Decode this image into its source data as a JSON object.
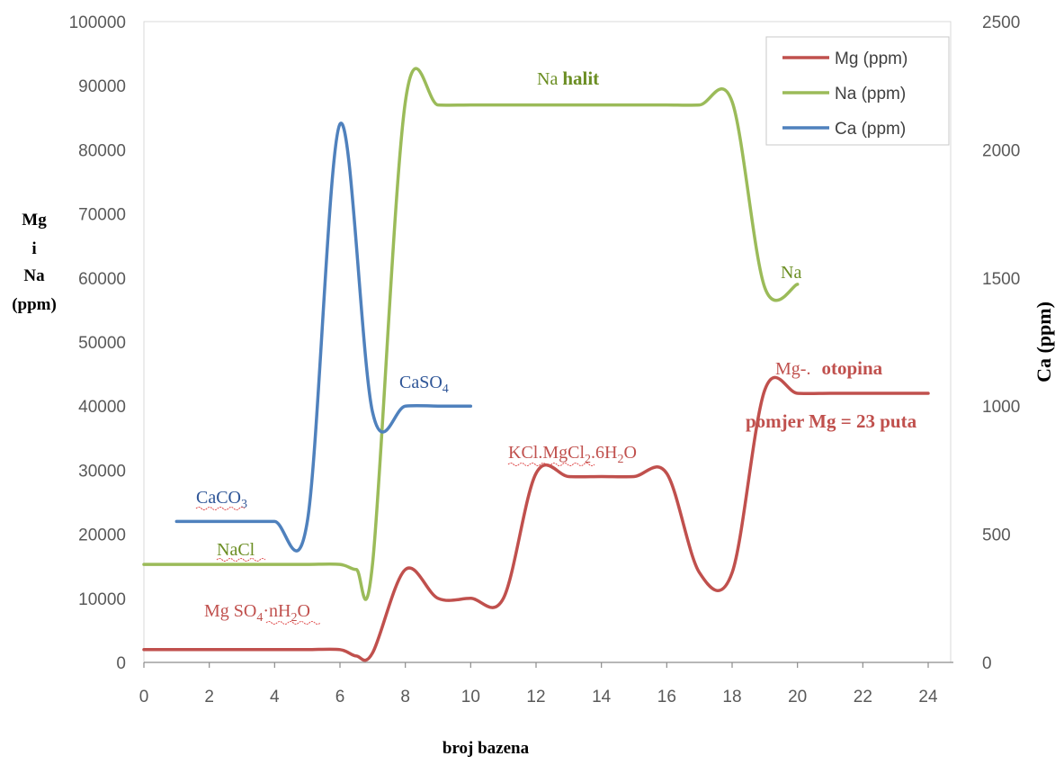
{
  "chart_data": {
    "type": "line",
    "title": "",
    "xlabel": "broj bazena",
    "ylabel_left": [
      "Mg",
      "i",
      "Na",
      "(ppm)"
    ],
    "ylabel_right": "Ca (ppm)",
    "xlim": [
      0,
      24
    ],
    "ylim_left": [
      0,
      100000
    ],
    "ylim_right": [
      0,
      2500
    ],
    "x_ticks": [
      "0",
      "2",
      "4",
      "6",
      "8",
      "10",
      "12",
      "14",
      "16",
      "18",
      "20",
      "22",
      "24"
    ],
    "y_left_ticks": [
      "0",
      "10000",
      "20000",
      "30000",
      "40000",
      "50000",
      "60000",
      "70000",
      "80000",
      "90000",
      "100000"
    ],
    "y_right_ticks": [
      "0",
      "500",
      "1000",
      "1500",
      "2000",
      "2500"
    ],
    "grid": false,
    "legend_position": "top-right",
    "legend": [
      "Mg (ppm)",
      "Na (ppm)",
      "Ca (ppm)"
    ],
    "series": [
      {
        "name": "Mg (ppm)",
        "axis": "left",
        "color": "#c0504d",
        "x": [
          0,
          1,
          2,
          3,
          4,
          5,
          6,
          6.5,
          7,
          8,
          9,
          10,
          11,
          12,
          13,
          14,
          15,
          16,
          17,
          18,
          19,
          20,
          21,
          22,
          23,
          24
        ],
        "y": [
          2000,
          2000,
          2000,
          2000,
          2000,
          2000,
          2000,
          1000,
          1500,
          14500,
          10000,
          10000,
          10000,
          29500,
          29000,
          29000,
          29000,
          29500,
          14000,
          14000,
          42500,
          42000,
          42000,
          42000,
          42000,
          42000
        ]
      },
      {
        "name": "Na (ppm)",
        "axis": "left",
        "color": "#9bbb59",
        "x": [
          0,
          1,
          2,
          3,
          4,
          5,
          6,
          6.5,
          7,
          8,
          9,
          10,
          11,
          12,
          13,
          14,
          15,
          16,
          17,
          18,
          19,
          20
        ],
        "y": [
          15300,
          15300,
          15300,
          15300,
          15300,
          15300,
          15300,
          14500,
          15500,
          87500,
          87000,
          87000,
          87000,
          87000,
          87000,
          87000,
          87000,
          87000,
          87000,
          87500,
          58500,
          59000
        ]
      },
      {
        "name": "Ca (ppm)",
        "axis": "right",
        "color": "#4f81bd",
        "x": [
          1,
          2,
          3,
          4,
          5,
          6,
          7,
          8,
          9,
          10
        ],
        "y": [
          550,
          550,
          550,
          550,
          550,
          2100,
          975,
          1000,
          1000,
          1000
        ]
      }
    ],
    "annotations": [
      {
        "text": "Na",
        "bold_text": "halit",
        "color": "#6b8e23"
      },
      {
        "text": "Na",
        "color": "#6b8e23"
      },
      {
        "text": "CaCO",
        "sub": "3",
        "color": "#2e5597"
      },
      {
        "text": "CaSO",
        "sub": "4",
        "color": "#2e5597"
      },
      {
        "text": "NaCl",
        "color": "#6b8e23"
      },
      {
        "text": "Mg SO",
        "sub": "4",
        "text2": "·nH",
        "sub2": "2",
        "text3": "O",
        "color": "#c0504d"
      },
      {
        "text": "KCl.MgCl",
        "sub": "2",
        "text2": ".6H",
        "sub2": "2",
        "text3": "O",
        "color": "#c0504d"
      },
      {
        "text": "Mg-.",
        "bold_text": "otopina",
        "color": "#c0504d"
      },
      {
        "text": "pomjer Mg = 23 puta",
        "color": "#c0504d"
      }
    ]
  }
}
